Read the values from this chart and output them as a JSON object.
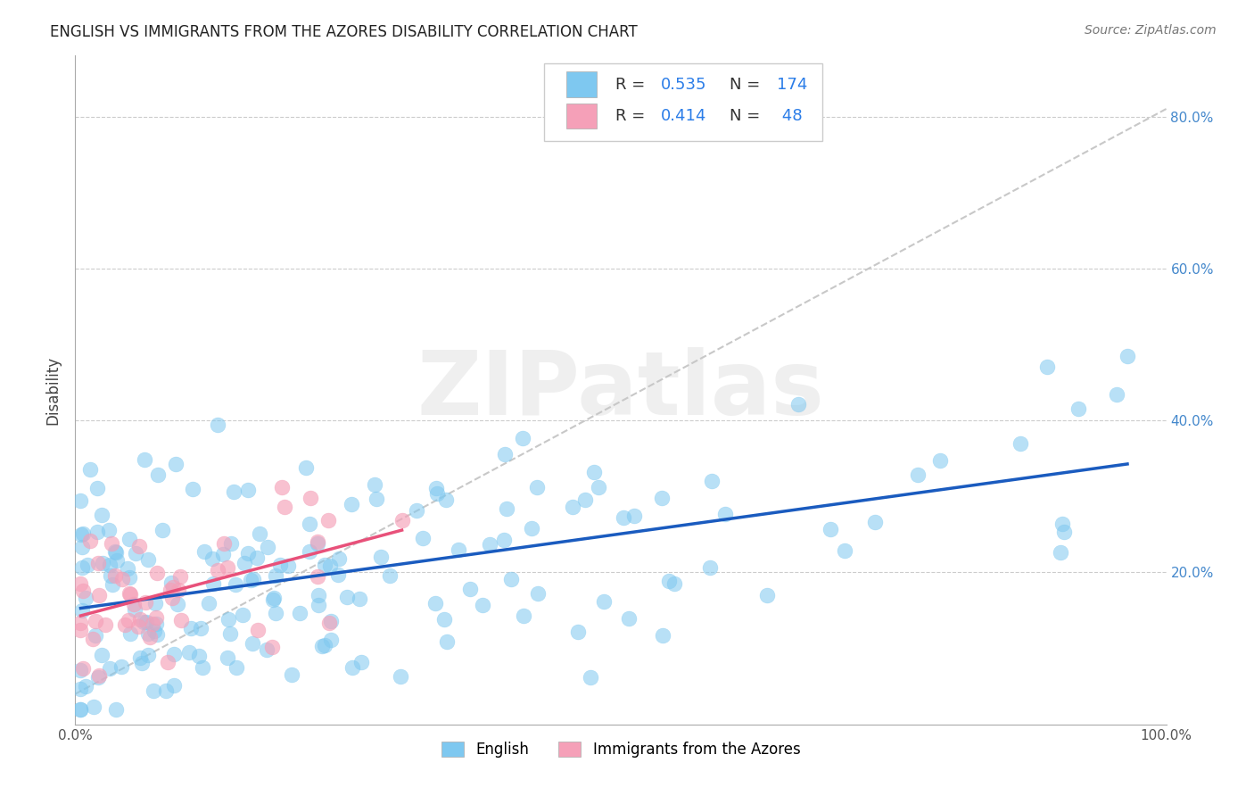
{
  "title": "ENGLISH VS IMMIGRANTS FROM THE AZORES DISABILITY CORRELATION CHART",
  "source": "Source: ZipAtlas.com",
  "ylabel": "Disability",
  "watermark": "ZIPatlas",
  "label1": "English",
  "label2": "Immigrants from the Azores",
  "color_blue": "#7ec8f0",
  "color_pink": "#f5a0b8",
  "line_blue": "#1a5bbf",
  "line_pink": "#e8517a",
  "dashed_color": "#c8c8c8",
  "dashed_pink": "#f0b0c0",
  "legend_blue_color": "#2b7de8",
  "title_color": "#222222",
  "source_color": "#777777",
  "ylabel_color": "#444444",
  "tick_color": "#4488cc",
  "R1": 0.535,
  "N1": 174,
  "R2": 0.414,
  "N2": 48
}
